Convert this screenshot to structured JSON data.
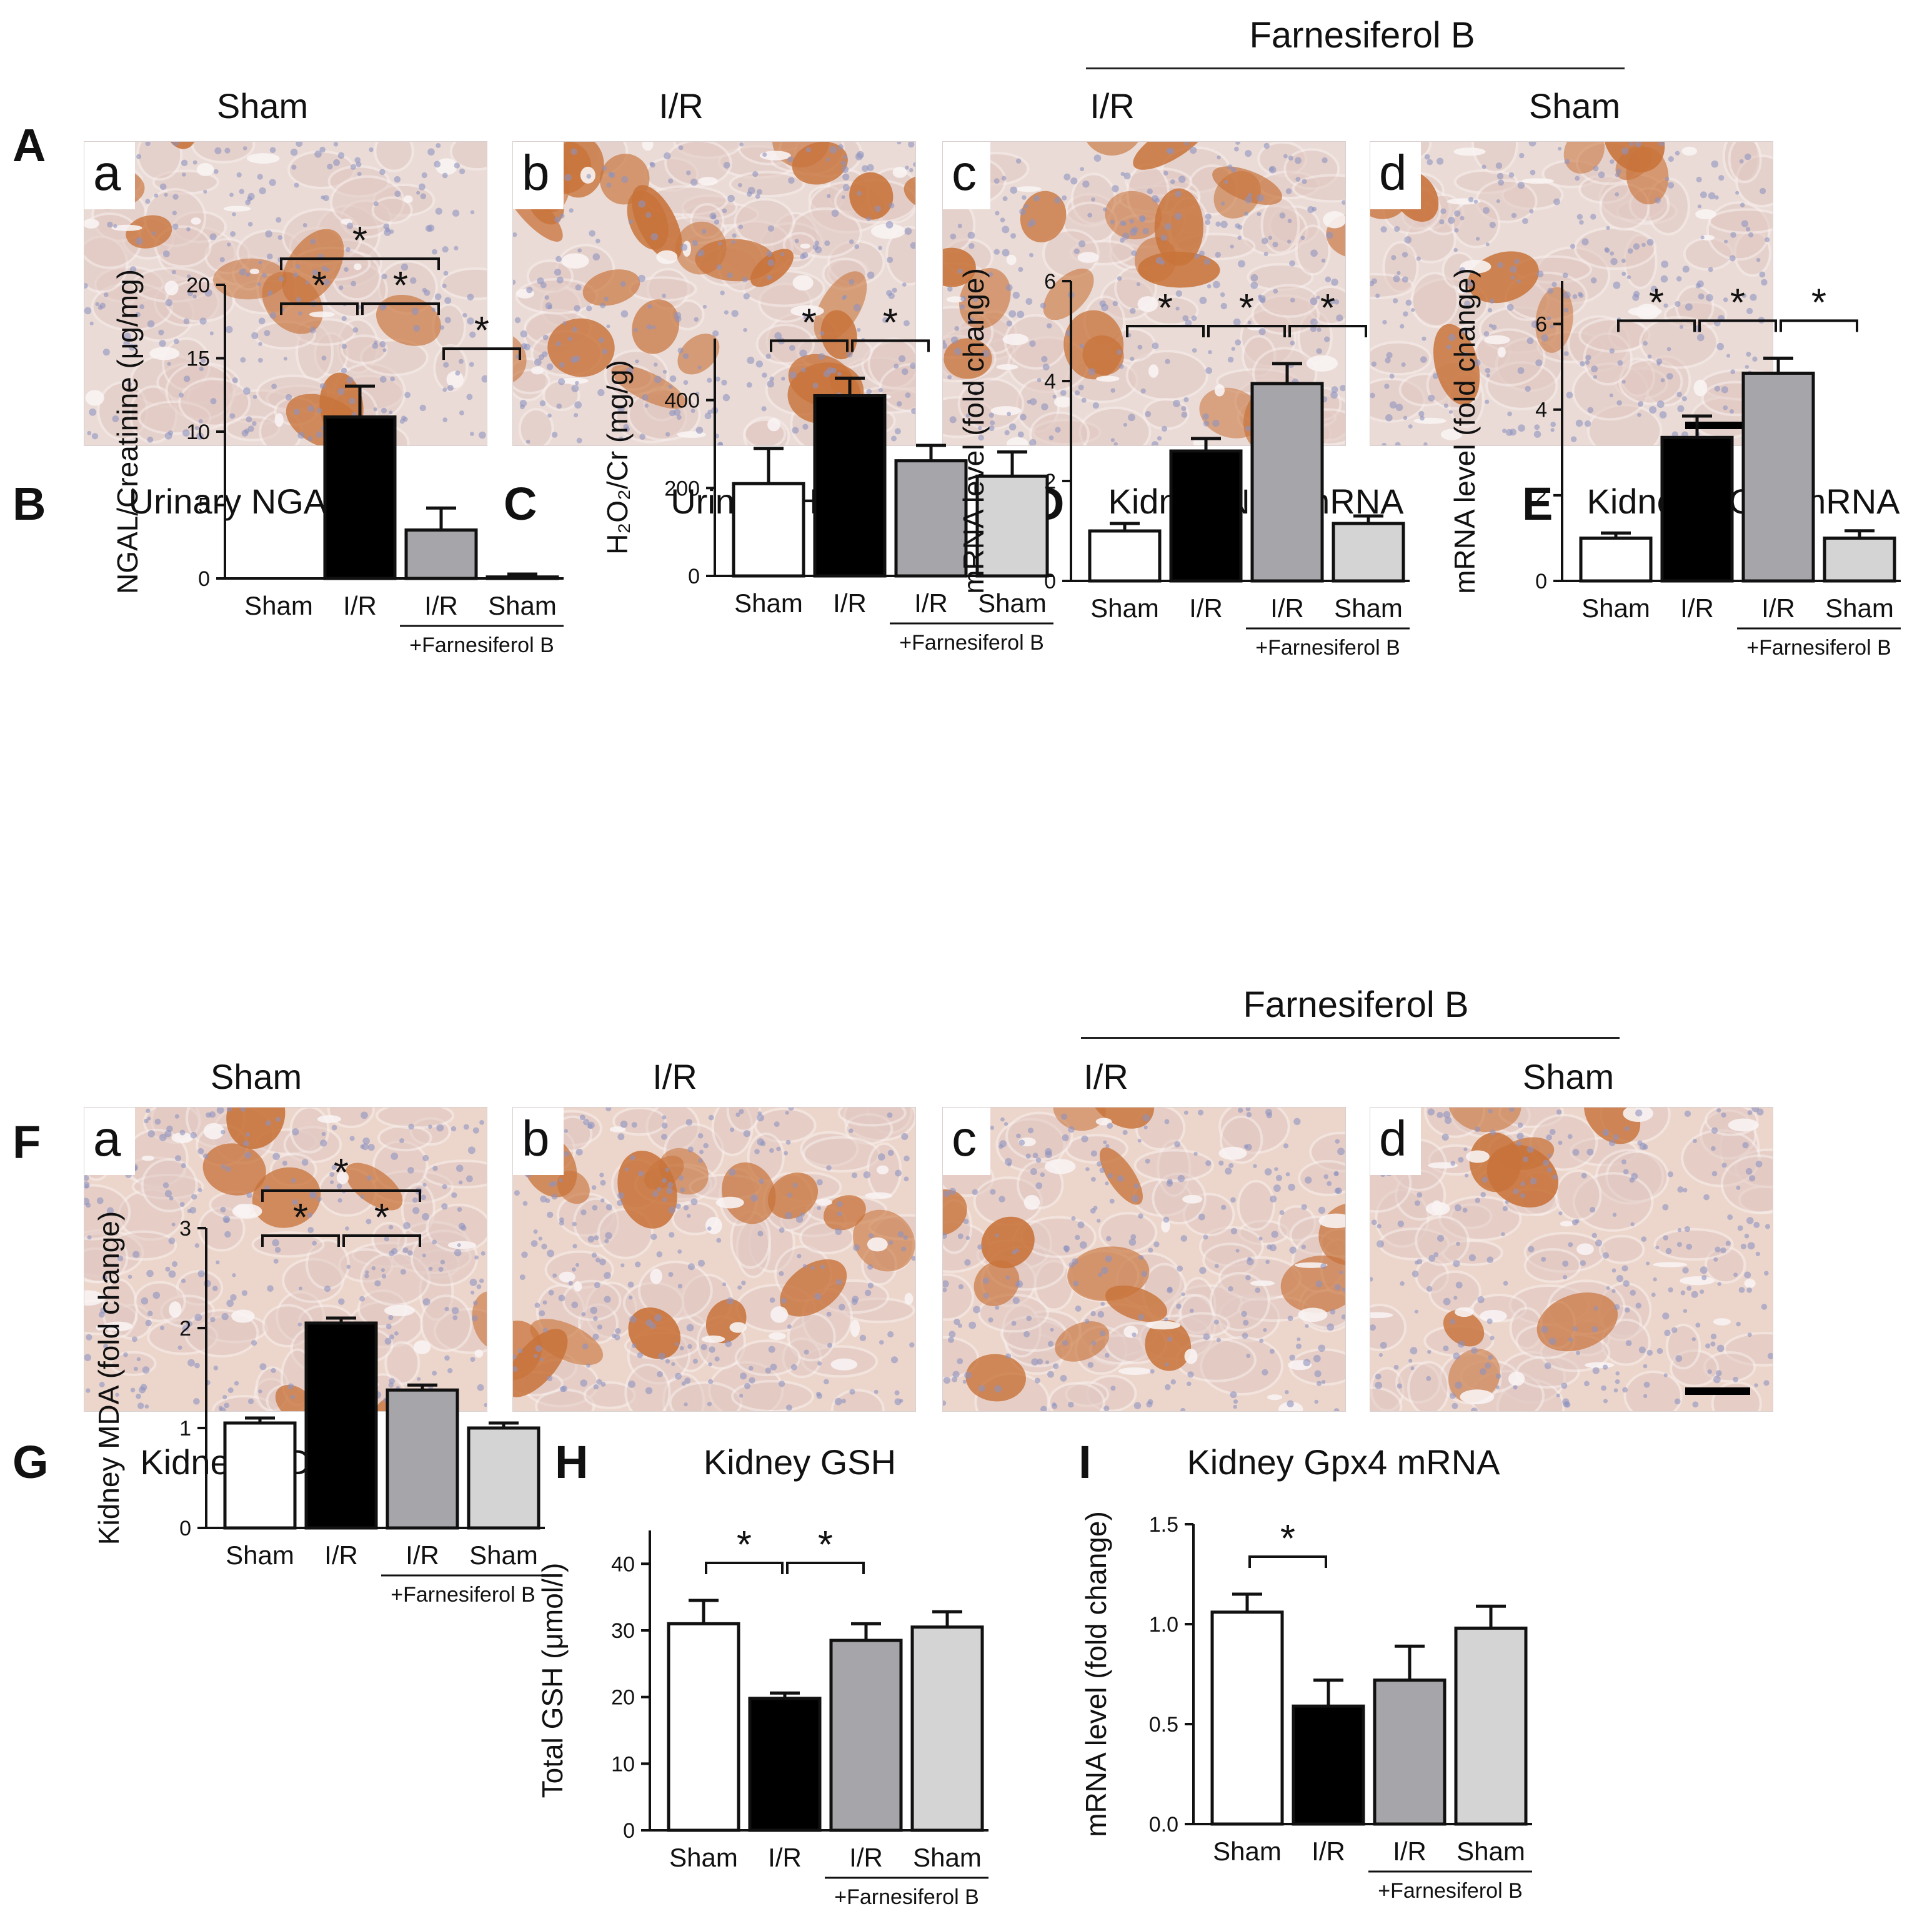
{
  "figure": {
    "panel_letters": {
      "A": "A",
      "B": "B",
      "C": "C",
      "D": "D",
      "E": "E",
      "F": "F",
      "G": "G",
      "H": "H",
      "I": "I"
    },
    "group_header": "Farnesiferol B",
    "row_A": {
      "titles": [
        "Sham",
        "I/R",
        "I/R",
        "Sham"
      ],
      "sublabels": [
        "a",
        "b",
        "c",
        "d"
      ]
    },
    "row_F": {
      "titles": [
        "Sham",
        "I/R",
        "I/R",
        "Sham"
      ],
      "sublabels": [
        "a",
        "b",
        "c",
        "d"
      ]
    },
    "colors": {
      "sham": "#ffffff",
      "ir": "#000000",
      "ir_farn": "#a6a6aa",
      "sham_farn": "#d4d4d4",
      "stain_brown": "#c8733a",
      "stain_blue": "#8d93c0",
      "tissue_bg": "#eadbd6"
    }
  },
  "chart_data": [
    {
      "id": "B",
      "type": "bar",
      "title": "Urinary NGAL",
      "ylabel": "NGAL/Creatinine (μg/mg)",
      "categories": [
        "Sham",
        "I/R",
        "I/R",
        "Sham"
      ],
      "group_label": "+Farnesiferol B",
      "values": [
        0,
        11,
        3.3,
        0.1
      ],
      "errors": [
        0,
        2.1,
        1.5,
        0.2
      ],
      "ylim": [
        0,
        20
      ],
      "yticks": [
        "0",
        "5",
        "10",
        "15",
        "20"
      ],
      "significance": [
        "*",
        "*",
        "*",
        "*"
      ]
    },
    {
      "id": "C",
      "type": "bar",
      "title": "Urinary H₂O₂",
      "ylabel": "H₂O₂/Cr (mg/g)",
      "categories": [
        "Sham",
        "I/R",
        "I/R",
        "Sham"
      ],
      "group_label": "+Farnesiferol B",
      "values": [
        210,
        410,
        262,
        227
      ],
      "errors": [
        80,
        40,
        35,
        55
      ],
      "ylim": [
        0,
        540
      ],
      "yticks": [
        "0",
        "200",
        "400"
      ],
      "significance": [
        "*",
        "*"
      ]
    },
    {
      "id": "D",
      "type": "bar",
      "title": "Kidney Nrf2 mRNA",
      "ylabel": "mRNA level (fold change)",
      "categories": [
        "Sham",
        "I/R",
        "I/R",
        "Sham"
      ],
      "group_label": "+Farnesiferol B",
      "values": [
        1.0,
        2.6,
        3.95,
        1.15
      ],
      "errors": [
        0.15,
        0.25,
        0.4,
        0.15
      ],
      "ylim": [
        0,
        6
      ],
      "yticks": [
        "0",
        "2",
        "4",
        "6"
      ],
      "significance": [
        "*",
        "*",
        "*"
      ]
    },
    {
      "id": "E",
      "type": "bar",
      "title": "Kidney HO-1 mRNA",
      "ylabel": "mRNA level (fold change)",
      "categories": [
        "Sham",
        "I/R",
        "I/R",
        "Sham"
      ],
      "group_label": "+Farnesiferol B",
      "values": [
        1.0,
        3.35,
        4.85,
        1.0
      ],
      "errors": [
        0.12,
        0.5,
        0.35,
        0.17
      ],
      "ylim": [
        0,
        7
      ],
      "yticks": [
        "0",
        "2",
        "4",
        "6"
      ],
      "significance": [
        "*",
        "*",
        "*"
      ]
    },
    {
      "id": "G",
      "type": "bar",
      "title": "Kidney MDA",
      "ylabel": "Kidney MDA (fold change)",
      "categories": [
        "Sham",
        "I/R",
        "I/R",
        "Sham"
      ],
      "group_label": "+Farnesiferol B",
      "values": [
        1.05,
        2.05,
        1.38,
        1.0
      ],
      "errors": [
        0.05,
        0.05,
        0.05,
        0.05
      ],
      "ylim": [
        0,
        3
      ],
      "yticks": [
        "0",
        "1",
        "2",
        "3"
      ],
      "significance": [
        "*",
        "*",
        "*"
      ]
    },
    {
      "id": "H",
      "type": "bar",
      "title": "Kidney GSH",
      "ylabel": "Total GSH (μmol/l)",
      "categories": [
        "Sham",
        "I/R",
        "I/R",
        "Sham"
      ],
      "group_label": "+Farnesiferol B",
      "values": [
        31,
        19.8,
        28.5,
        30.5
      ],
      "errors": [
        3.5,
        0.8,
        2.5,
        2.3
      ],
      "ylim": [
        0,
        45
      ],
      "yticks": [
        "0",
        "10",
        "20",
        "30",
        "40"
      ],
      "significance": [
        "*",
        "*"
      ]
    },
    {
      "id": "I",
      "type": "bar",
      "title": "Kidney Gpx4 mRNA",
      "ylabel": "mRNA level (fold change)",
      "categories": [
        "Sham",
        "I/R",
        "I/R",
        "Sham"
      ],
      "group_label": "+Farnesiferol B",
      "values": [
        1.06,
        0.59,
        0.72,
        0.98
      ],
      "errors": [
        0.09,
        0.13,
        0.17,
        0.11
      ],
      "ylim": [
        0,
        1.5
      ],
      "yticks": [
        "0.0",
        "0.5",
        "1.0",
        "1.5"
      ],
      "significance": [
        "*"
      ]
    }
  ]
}
